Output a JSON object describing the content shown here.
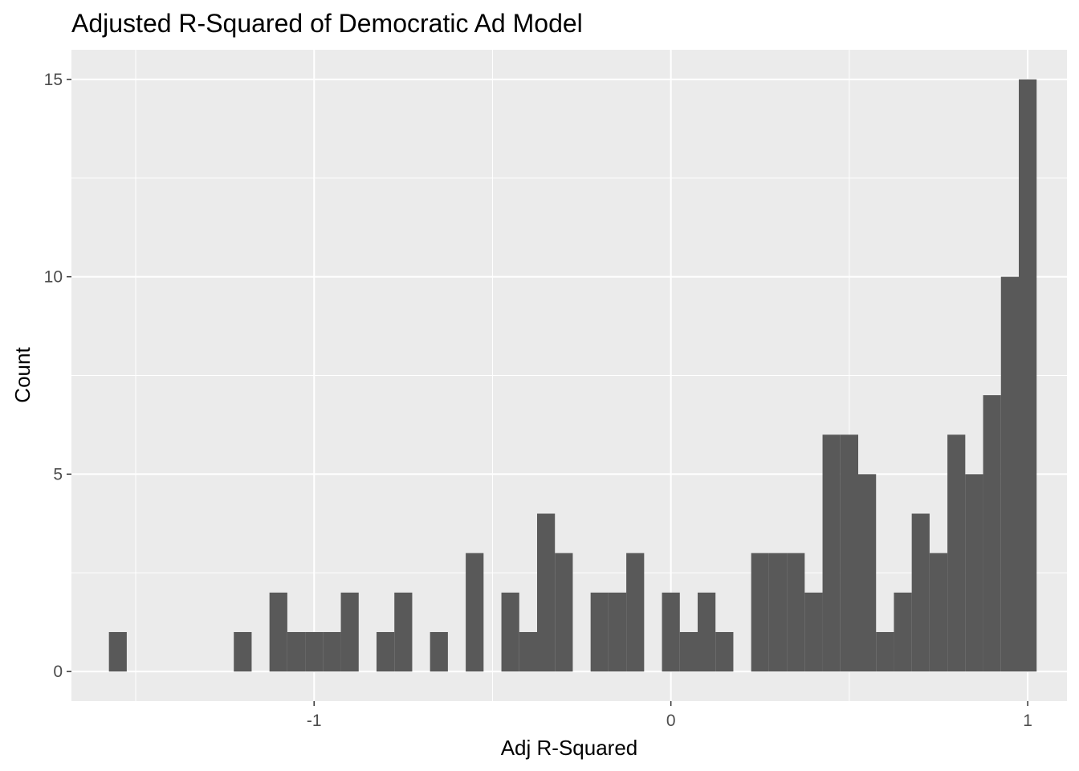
{
  "chart_data": {
    "type": "bar",
    "title": "Adjusted R-Squared of Democratic Ad Model",
    "xlabel": "Adj R-Squared",
    "ylabel": "Count",
    "xlim": [
      -1.68,
      1.11
    ],
    "ylim": [
      -0.75,
      15.75
    ],
    "xticks": [
      -1,
      0,
      1
    ],
    "xtick_labels": [
      "-1",
      "0",
      "1"
    ],
    "yticks": [
      0,
      5,
      10,
      15
    ],
    "ytick_labels": [
      "0",
      "5",
      "10",
      "15"
    ],
    "grid": true,
    "legend": "none",
    "bin_width": 0.05,
    "bins": [
      {
        "x": -1.55,
        "count": 1
      },
      {
        "x": -1.5,
        "count": 0
      },
      {
        "x": -1.45,
        "count": 0
      },
      {
        "x": -1.4,
        "count": 0
      },
      {
        "x": -1.35,
        "count": 0
      },
      {
        "x": -1.3,
        "count": 0
      },
      {
        "x": -1.25,
        "count": 0
      },
      {
        "x": -1.2,
        "count": 1
      },
      {
        "x": -1.15,
        "count": 0
      },
      {
        "x": -1.1,
        "count": 2
      },
      {
        "x": -1.05,
        "count": 1
      },
      {
        "x": -1.0,
        "count": 1
      },
      {
        "x": -0.95,
        "count": 1
      },
      {
        "x": -0.9,
        "count": 2
      },
      {
        "x": -0.85,
        "count": 0
      },
      {
        "x": -0.8,
        "count": 1
      },
      {
        "x": -0.75,
        "count": 2
      },
      {
        "x": -0.7,
        "count": 0
      },
      {
        "x": -0.65,
        "count": 1
      },
      {
        "x": -0.6,
        "count": 0
      },
      {
        "x": -0.55,
        "count": 3
      },
      {
        "x": -0.5,
        "count": 0
      },
      {
        "x": -0.45,
        "count": 2
      },
      {
        "x": -0.4,
        "count": 1
      },
      {
        "x": -0.35,
        "count": 4
      },
      {
        "x": -0.3,
        "count": 3
      },
      {
        "x": -0.25,
        "count": 0
      },
      {
        "x": -0.2,
        "count": 2
      },
      {
        "x": -0.15,
        "count": 2
      },
      {
        "x": -0.1,
        "count": 3
      },
      {
        "x": -0.05,
        "count": 0
      },
      {
        "x": 0.0,
        "count": 2
      },
      {
        "x": 0.05,
        "count": 1
      },
      {
        "x": 0.1,
        "count": 2
      },
      {
        "x": 0.15,
        "count": 1
      },
      {
        "x": 0.2,
        "count": 0
      },
      {
        "x": 0.25,
        "count": 3
      },
      {
        "x": 0.3,
        "count": 3
      },
      {
        "x": 0.35,
        "count": 3
      },
      {
        "x": 0.4,
        "count": 2
      },
      {
        "x": 0.45,
        "count": 6
      },
      {
        "x": 0.5,
        "count": 6
      },
      {
        "x": 0.55,
        "count": 5
      },
      {
        "x": 0.6,
        "count": 1
      },
      {
        "x": 0.65,
        "count": 2
      },
      {
        "x": 0.7,
        "count": 4
      },
      {
        "x": 0.75,
        "count": 3
      },
      {
        "x": 0.8,
        "count": 6
      },
      {
        "x": 0.85,
        "count": 5
      },
      {
        "x": 0.9,
        "count": 7
      },
      {
        "x": 0.95,
        "count": 10
      },
      {
        "x": 1.0,
        "count": 15
      }
    ],
    "colors": {
      "panel": "#ebebeb",
      "grid_major": "#ffffff",
      "bar": "#595959"
    }
  }
}
